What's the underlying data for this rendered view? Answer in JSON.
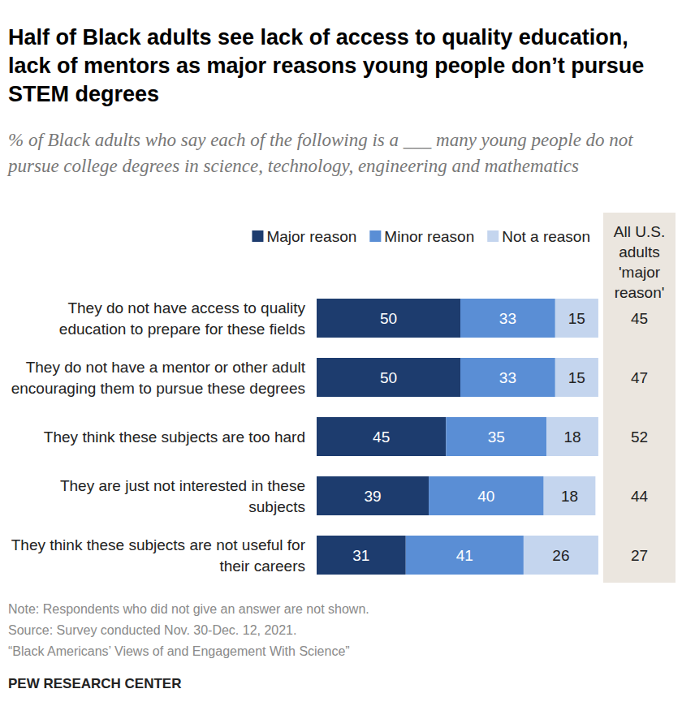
{
  "chart_data": {
    "type": "bar",
    "orientation": "horizontal",
    "stacked": true,
    "data_labels": true,
    "tick_labels": false,
    "grid": false,
    "legend": "top",
    "title": "Half of Black adults see lack of access to quality education, lack of mentors as major reasons young people don’t pursue STEM degrees",
    "subtitle": "% of Black adults who say each of the following is a ___ many young people do not pursue college degrees in science, technology, engineering and mathematics",
    "categories": [
      "They do not have access to quality education to prepare for these fields",
      "They do not have a mentor or other adult encouraging them to pursue these degrees",
      "They think these subjects are too hard",
      "They are just not interested in these subjects",
      "They think these subjects are not useful for their careers"
    ],
    "series": [
      {
        "name": "Major reason",
        "color": "#1d3c6e",
        "values": [
          50,
          50,
          45,
          39,
          31
        ]
      },
      {
        "name": "Minor reason",
        "color": "#5a8ed5",
        "values": [
          33,
          33,
          35,
          40,
          41
        ]
      },
      {
        "name": "Not a reason",
        "color": "#c4d5ee",
        "values": [
          15,
          15,
          18,
          18,
          26
        ]
      }
    ],
    "xlim": [
      0,
      100
    ],
    "all_adults": {
      "label": "All U.S. adults 'major reason'",
      "values": [
        45,
        47,
        52,
        44,
        27
      ]
    },
    "notes": [
      "Note: Respondents who did not give an answer are not shown.",
      "Source: Survey conducted Nov. 30-Dec. 12, 2021.",
      "“Black Americans’ Views of and Engagement With Science”"
    ],
    "credit": "PEW RESEARCH CENTER"
  }
}
